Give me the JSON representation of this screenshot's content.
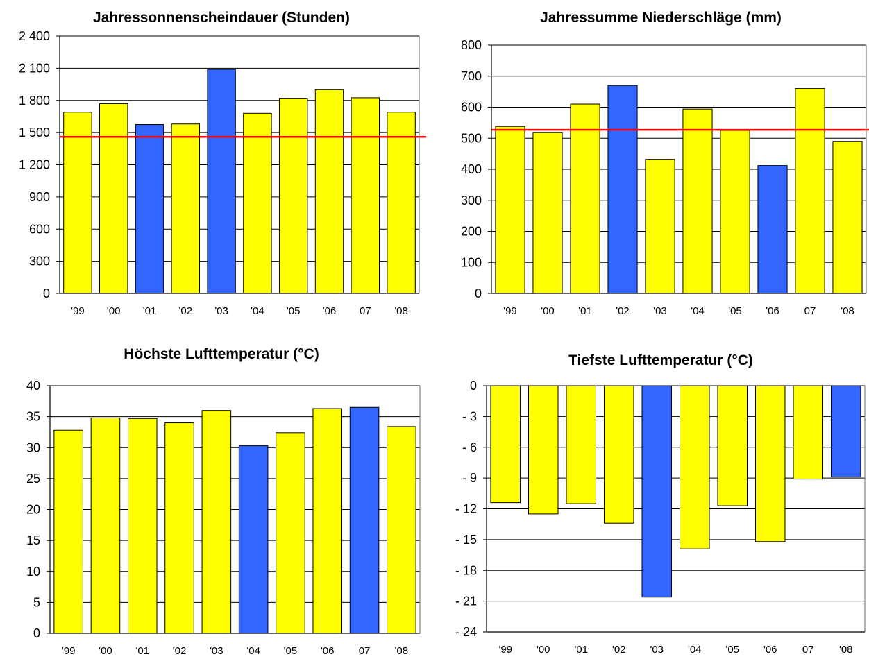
{
  "colors": {
    "highlight_bar": "#3366ff",
    "normal_bar": "#ffff00",
    "reference_line": "#ff0000"
  },
  "chart_data": [
    {
      "type": "bar",
      "title": "Jahressonnenscheindauer (Stunden)",
      "categories": [
        "'99",
        "'00",
        "'01",
        "'02",
        "'03",
        "'04",
        "'05",
        "'06",
        "07",
        "'08"
      ],
      "values": [
        1690,
        1770,
        1575,
        1580,
        2090,
        1680,
        1820,
        1900,
        1825,
        1690
      ],
      "highlight": [
        false,
        false,
        true,
        false,
        true,
        false,
        false,
        false,
        false,
        false
      ],
      "reference_line": 1460,
      "yticks": [
        0,
        300,
        600,
        900,
        1200,
        1500,
        1800,
        2100,
        2400
      ],
      "ytick_labels": [
        "0",
        "300",
        "600",
        "900",
        "1 200",
        "1 500",
        "1 800",
        "2 100",
        "2 400"
      ],
      "ylim": [
        0,
        2400
      ],
      "grid": true,
      "legend": "none",
      "xlabel": "",
      "ylabel": ""
    },
    {
      "type": "bar",
      "title": "Jahressumme Niederschläge (mm)",
      "categories": [
        "'99",
        "'00",
        "'01",
        "'02",
        "'03",
        "'04",
        "'05",
        "'06",
        "07",
        "'08"
      ],
      "values": [
        538,
        518,
        610,
        670,
        432,
        594,
        525,
        412,
        660,
        490
      ],
      "highlight": [
        false,
        false,
        false,
        true,
        false,
        false,
        false,
        true,
        false,
        false
      ],
      "reference_line": 527,
      "yticks": [
        0,
        100,
        200,
        300,
        400,
        500,
        600,
        700,
        800
      ],
      "ytick_labels": [
        "0",
        "100",
        "200",
        "300",
        "400",
        "500",
        "600",
        "700",
        "800"
      ],
      "ylim": [
        0,
        800
      ],
      "grid": true,
      "legend": "none",
      "xlabel": "",
      "ylabel": ""
    },
    {
      "type": "bar",
      "title": "Höchste Lufttemperatur (°C)",
      "categories": [
        "'99",
        "'00",
        "'01",
        "'02",
        "'03",
        "'04",
        "'05",
        "'06",
        "07",
        "'08"
      ],
      "values": [
        32.8,
        34.8,
        34.7,
        34.0,
        36.0,
        30.3,
        32.4,
        36.3,
        36.5,
        33.4
      ],
      "highlight": [
        false,
        false,
        false,
        false,
        false,
        true,
        false,
        false,
        true,
        false
      ],
      "yticks": [
        0,
        5,
        10,
        15,
        20,
        25,
        30,
        35,
        40
      ],
      "ytick_labels": [
        "0",
        "5",
        "10",
        "15",
        "20",
        "25",
        "30",
        "35",
        "40"
      ],
      "ylim": [
        0,
        40
      ],
      "grid": true,
      "legend": "none",
      "xlabel": "",
      "ylabel": ""
    },
    {
      "type": "bar",
      "title": "Tiefste Lufttemperatur (°C)",
      "categories": [
        "'99",
        "'00",
        "'01",
        "'02",
        "'03",
        "'04",
        "'05",
        "'06",
        "07",
        "'08"
      ],
      "values": [
        -11.4,
        -12.5,
        -11.5,
        -13.4,
        -20.6,
        -15.9,
        -11.7,
        -15.2,
        -9.1,
        -8.9
      ],
      "highlight": [
        false,
        false,
        false,
        false,
        true,
        false,
        false,
        false,
        false,
        true
      ],
      "yticks": [
        0,
        -3,
        -6,
        -9,
        -12,
        -15,
        -18,
        -21,
        -24
      ],
      "ytick_labels": [
        "0",
        "- 3",
        "- 6",
        "- 9",
        "- 12",
        "- 15",
        "- 18",
        "- 21",
        "- 24"
      ],
      "ylim": [
        -24,
        0
      ],
      "grid": true,
      "legend": "none",
      "xlabel": "",
      "ylabel": ""
    }
  ]
}
